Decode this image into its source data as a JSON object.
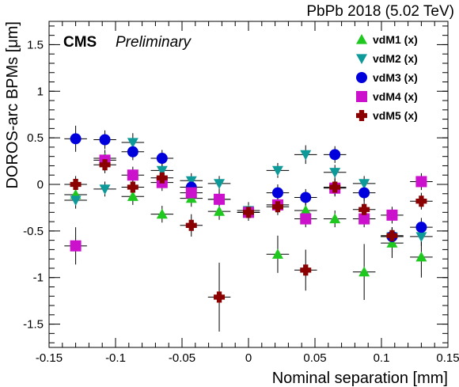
{
  "header": {
    "collaboration": "CMS",
    "status": "Preliminary",
    "dataset": "PbPb 2018 (5.02 TeV)"
  },
  "chart_data": {
    "type": "scatter",
    "title": "",
    "xlabel": "Nominal separation [mm]",
    "ylabel": "DOROS-arc BPMs [μm]",
    "xlim": [
      -0.15,
      0.15
    ],
    "ylim": [
      -1.75,
      1.75
    ],
    "x_ticks": [
      -0.15,
      -0.1,
      -0.05,
      0,
      0.05,
      0.1,
      0.15
    ],
    "x_tick_labels": [
      "-0.15",
      "-0.1",
      "-0.05",
      "0",
      "0.05",
      "0.1",
      "0.15"
    ],
    "y_ticks": [
      -1.5,
      -1,
      -0.5,
      0,
      0.5,
      1,
      1.5
    ],
    "y_tick_labels": [
      "-1.5",
      "-1",
      "-0.5",
      "0",
      "0.5",
      "1",
      "1.5"
    ],
    "x_error": 0.0085,
    "legend_position": "top-right",
    "grid": false,
    "series": [
      {
        "name": "vdM1 (x)",
        "marker": "triangle-up",
        "color": "#1ec81e",
        "x": [
          -0.13,
          -0.108,
          -0.087,
          -0.065,
          -0.043,
          -0.022,
          0,
          0.022,
          0.043,
          0.065,
          0.087,
          0.108,
          0.13
        ],
        "y": [
          -0.11,
          0.28,
          -0.13,
          -0.32,
          -0.15,
          -0.29,
          -0.28,
          -0.75,
          -0.28,
          -0.37,
          -0.94,
          -0.63,
          -0.78
        ],
        "yerr": [
          0.09,
          0.09,
          0.09,
          0.09,
          0.09,
          0.09,
          0.09,
          0.2,
          0.09,
          0.09,
          0.3,
          0.16,
          0.22
        ]
      },
      {
        "name": "vdM2 (x)",
        "marker": "triangle-down",
        "color": "#0f9a9a",
        "x": [
          -0.13,
          -0.108,
          -0.087,
          -0.065,
          -0.043,
          -0.022,
          0,
          0.022,
          0.043,
          0.065,
          0.087,
          0.108,
          0.13
        ],
        "y": [
          -0.17,
          -0.05,
          0.45,
          0.15,
          0.04,
          0.01,
          -0.28,
          0.15,
          0.32,
          0.13,
          0.01,
          -0.56,
          -0.56
        ],
        "yerr": [
          0.09,
          0.08,
          0.1,
          0.08,
          0.08,
          0.08,
          0.08,
          0.08,
          0.1,
          0.08,
          0.08,
          0.1,
          0.1
        ]
      },
      {
        "name": "vdM3 (x)",
        "marker": "circle",
        "color": "#0000dd",
        "x": [
          -0.13,
          -0.108,
          -0.087,
          -0.065,
          -0.043,
          -0.022,
          0,
          0.022,
          0.043,
          0.065,
          0.087,
          0.108,
          0.13
        ],
        "y": [
          0.49,
          0.48,
          0.35,
          0.28,
          -0.03,
          -0.16,
          -0.3,
          -0.09,
          -0.14,
          0.32,
          -0.09,
          -0.56,
          -0.46
        ],
        "yerr": [
          0.14,
          0.1,
          0.09,
          0.09,
          0.09,
          0.09,
          0.09,
          0.09,
          0.09,
          0.09,
          0.09,
          0.1,
          0.1
        ]
      },
      {
        "name": "vdM4 (x)",
        "marker": "square",
        "color": "#cc11cc",
        "x": [
          -0.13,
          -0.108,
          -0.087,
          -0.065,
          -0.043,
          -0.022,
          0,
          0.022,
          0.043,
          0.065,
          0.087,
          0.108,
          0.13
        ],
        "y": [
          -0.66,
          0.26,
          0.1,
          0.02,
          -0.09,
          -0.16,
          -0.3,
          -0.22,
          -0.37,
          -0.04,
          -0.37,
          -0.33,
          0.03
        ],
        "yerr": [
          0.2,
          0.09,
          0.09,
          0.09,
          0.09,
          0.09,
          0.09,
          0.09,
          0.09,
          0.09,
          0.09,
          0.09,
          0.09
        ]
      },
      {
        "name": "vdM5 (x)",
        "marker": "cross",
        "color": "#8b0000",
        "x": [
          -0.13,
          -0.108,
          -0.087,
          -0.065,
          -0.043,
          -0.022,
          0,
          0.022,
          0.043,
          0.065,
          0.087,
          0.108,
          0.13
        ],
        "y": [
          0.0,
          0.21,
          -0.03,
          0.07,
          -0.44,
          -1.21,
          -0.3,
          -0.24,
          -0.92,
          -0.03,
          -0.27,
          -0.55,
          -0.18
        ],
        "yerr": [
          0.09,
          0.09,
          0.09,
          0.09,
          0.12,
          0.37,
          0.09,
          0.09,
          0.22,
          0.09,
          0.13,
          0.09,
          0.09
        ]
      }
    ]
  }
}
